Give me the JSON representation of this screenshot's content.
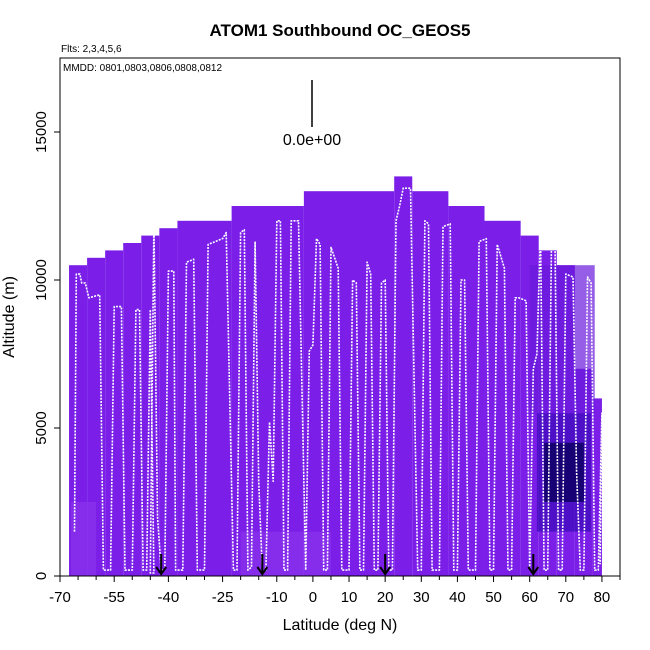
{
  "chart_data": {
    "type": "heatmap",
    "title": "ATOM1 Southbound OC_GEOS5",
    "flights_note": "Flts: 2,3,4,5,6",
    "dates_note": "MMDD: 0801,0803,0806,0808,0812",
    "xlabel": "Latitude (deg N)",
    "ylabel": "Altitude (m)",
    "xlim": [
      -70,
      85
    ],
    "ylim": [
      0,
      17500
    ],
    "x_ticks": [
      -70,
      -55,
      -40,
      -25,
      -10,
      0,
      10,
      20,
      30,
      40,
      50,
      60,
      70,
      80
    ],
    "x_tick_labels": [
      "-70",
      "-55",
      "-40",
      "-25",
      "-10",
      "0",
      "10",
      "20",
      "30",
      "40",
      "50",
      "60",
      "70",
      "80"
    ],
    "y_ticks": [
      0,
      5000,
      10000,
      15000
    ],
    "y_tick_labels": [
      "0",
      "5000",
      "10000",
      "15000"
    ],
    "legend_value": "0.0e+00",
    "colors": {
      "base": "#7a1ee8",
      "low": "#8a33ec",
      "mid": "#6a18dc",
      "high": "#3a0ab8",
      "max": "#140070",
      "track": "#ffffff"
    },
    "column_tops": [
      {
        "lat0": -67.5,
        "lat1": -62.5,
        "top": 10500
      },
      {
        "lat0": -62.5,
        "lat1": -57.5,
        "top": 10750
      },
      {
        "lat0": -57.5,
        "lat1": -52.5,
        "top": 11000
      },
      {
        "lat0": -52.5,
        "lat1": -47.5,
        "top": 11250
      },
      {
        "lat0": -47.5,
        "lat1": -42.5,
        "top": 11500
      },
      {
        "lat0": -42.5,
        "lat1": -37.5,
        "top": 11750
      },
      {
        "lat0": -37.5,
        "lat1": -22.5,
        "top": 12000
      },
      {
        "lat0": -22.5,
        "lat1": -2.5,
        "top": 12500
      },
      {
        "lat0": -2.5,
        "lat1": 22.5,
        "top": 13000
      },
      {
        "lat0": 22.5,
        "lat1": 27.5,
        "top": 13500
      },
      {
        "lat0": 27.5,
        "lat1": 37.5,
        "top": 13000
      },
      {
        "lat0": 37.5,
        "lat1": 47.5,
        "top": 12500
      },
      {
        "lat0": 47.5,
        "lat1": 57.5,
        "top": 12000
      },
      {
        "lat0": 57.5,
        "lat1": 62.5,
        "top": 11500
      },
      {
        "lat0": 62.5,
        "lat1": 67.5,
        "top": 11000
      },
      {
        "lat0": 67.5,
        "lat1": 72.5,
        "top": 10500
      },
      {
        "lat0": 72.5,
        "lat1": 77.5,
        "top": 7000
      },
      {
        "lat0": 77.5,
        "lat1": 80.0,
        "top": 6000
      }
    ],
    "concentration_patches": [
      {
        "lat0": 62,
        "lat1": 77,
        "alt0": 1500,
        "alt1": 5500,
        "level": "high"
      },
      {
        "lat0": 64,
        "lat1": 75,
        "alt0": 2500,
        "alt1": 4500,
        "level": "max"
      },
      {
        "lat0": 60,
        "lat1": 78,
        "alt0": 5500,
        "alt1": 10500,
        "level": "mid"
      },
      {
        "lat0": -67,
        "lat1": -60,
        "alt0": 0,
        "alt1": 2500,
        "level": "low"
      },
      {
        "lat0": -20,
        "lat1": 5,
        "alt0": 0,
        "alt1": 1500,
        "level": "low"
      }
    ],
    "flight_track": [
      [
        -66,
        1500
      ],
      [
        -65.5,
        10200
      ],
      [
        -64.5,
        10200
      ],
      [
        -64,
        9900
      ],
      [
        -63,
        9900
      ],
      [
        -62,
        9400
      ],
      [
        -59,
        9500
      ],
      [
        -58,
        200
      ],
      [
        -56,
        200
      ],
      [
        -55,
        9100
      ],
      [
        -53,
        9100
      ],
      [
        -52,
        200
      ],
      [
        -50,
        200
      ],
      [
        -49,
        9000
      ],
      [
        -48,
        9000
      ],
      [
        -47,
        200
      ],
      [
        -46,
        200
      ],
      [
        -45,
        9000
      ],
      [
        -44,
        100
      ],
      [
        -45,
        100
      ],
      [
        -44,
        11900
      ],
      [
        -43,
        2000
      ],
      [
        -42,
        200
      ],
      [
        -41,
        200
      ],
      [
        -40,
        10300
      ],
      [
        -38.5,
        10300
      ],
      [
        -38,
        200
      ],
      [
        -36,
        200
      ],
      [
        -35,
        10600
      ],
      [
        -33,
        10700
      ],
      [
        -32,
        200
      ],
      [
        -30,
        200
      ],
      [
        -29,
        11200
      ],
      [
        -25,
        11400
      ],
      [
        -24,
        11600
      ],
      [
        -22,
        200
      ],
      [
        -21,
        200
      ],
      [
        -20,
        11600
      ],
      [
        -19,
        11700
      ],
      [
        -18,
        200
      ],
      [
        -17,
        300
      ],
      [
        -16,
        11300
      ],
      [
        -15,
        3200
      ],
      [
        -14,
        200
      ],
      [
        -13,
        200
      ],
      [
        -12,
        5200
      ],
      [
        -11,
        3200
      ],
      [
        -10,
        12000
      ],
      [
        -9,
        12000
      ],
      [
        -8,
        200
      ],
      [
        -7,
        200
      ],
      [
        -6,
        12000
      ],
      [
        -4,
        12000
      ],
      [
        -2,
        200
      ],
      [
        -1,
        7600
      ],
      [
        0,
        7800
      ],
      [
        1,
        11400
      ],
      [
        2,
        11200
      ],
      [
        3,
        200
      ],
      [
        4,
        200
      ],
      [
        5,
        11100
      ],
      [
        7,
        10400
      ],
      [
        8,
        200
      ],
      [
        10,
        200
      ],
      [
        11,
        10000
      ],
      [
        12,
        9900
      ],
      [
        13,
        200
      ],
      [
        14,
        200
      ],
      [
        15,
        10600
      ],
      [
        16,
        10200
      ],
      [
        17,
        200
      ],
      [
        18,
        200
      ],
      [
        19,
        9900
      ],
      [
        20,
        10000
      ],
      [
        21,
        200
      ],
      [
        22,
        200
      ],
      [
        23,
        12000
      ],
      [
        24,
        12500
      ],
      [
        25,
        13100
      ],
      [
        27,
        13100
      ],
      [
        29,
        200
      ],
      [
        30,
        200
      ],
      [
        31,
        12000
      ],
      [
        32,
        11900
      ],
      [
        33,
        200
      ],
      [
        35,
        200
      ],
      [
        36,
        11800
      ],
      [
        38,
        11900
      ],
      [
        39,
        200
      ],
      [
        40,
        200
      ],
      [
        41,
        10000
      ],
      [
        42,
        10000
      ],
      [
        43,
        200
      ],
      [
        45,
        200
      ],
      [
        46,
        11300
      ],
      [
        48,
        11400
      ],
      [
        49,
        200
      ],
      [
        50,
        200
      ],
      [
        51,
        11200
      ],
      [
        53,
        10400
      ],
      [
        54,
        200
      ],
      [
        55,
        200
      ],
      [
        56,
        9400
      ],
      [
        57,
        9400
      ],
      [
        59,
        9300
      ],
      [
        60,
        200
      ],
      [
        61,
        7000
      ],
      [
        62,
        7500
      ],
      [
        63,
        11700
      ],
      [
        64,
        200
      ],
      [
        65,
        200
      ],
      [
        66,
        11000
      ],
      [
        67,
        11200
      ],
      [
        68,
        200
      ],
      [
        69,
        200
      ],
      [
        70,
        10200
      ],
      [
        72,
        10100
      ],
      [
        73,
        3500
      ],
      [
        74,
        200
      ],
      [
        75,
        200
      ],
      [
        76,
        10100
      ],
      [
        77,
        9900
      ],
      [
        78,
        200
      ],
      [
        79,
        200
      ],
      [
        80,
        5500
      ],
      [
        79.5,
        400
      ]
    ],
    "arrows": [
      -42,
      -14,
      20,
      61
    ],
    "legend_bar_value": 0
  }
}
